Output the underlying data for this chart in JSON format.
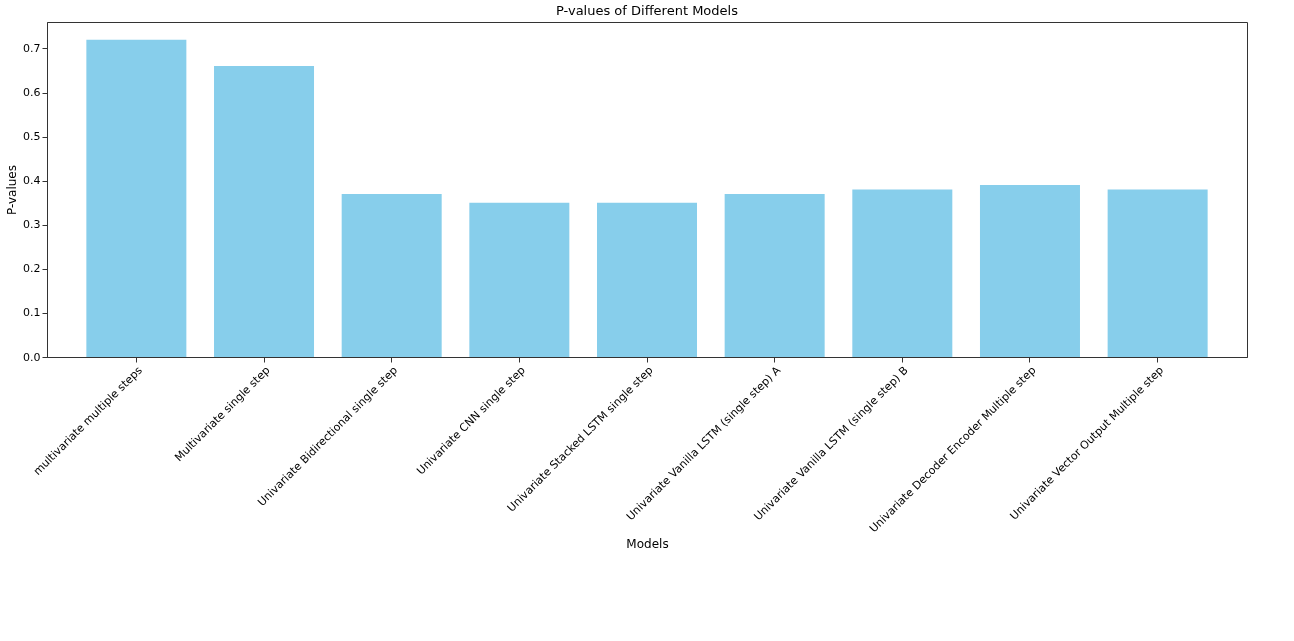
{
  "chart_data": {
    "type": "bar",
    "title": "P-values of Different Models",
    "xlabel": "Models",
    "ylabel": "P-values",
    "categories": [
      "multivariate multiple steps",
      "Multivariate single step",
      "Univariate Bidirectional single step",
      "Univariate CNN single step",
      "Univariate Stacked LSTM single step",
      "Univariate Vanilla LSTM (single step) A",
      "Univariate Vanilla LSTM (single step) B",
      "Univariate Decoder Encoder Multiple step",
      "Univariate Vector Output Multiple step"
    ],
    "values": [
      0.72,
      0.66,
      0.37,
      0.35,
      0.35,
      0.37,
      0.38,
      0.39,
      0.38
    ],
    "color": "#87ceeb",
    "ylim": [
      0,
      0.76
    ],
    "yticks": [
      {
        "value": 0,
        "label": "0.0"
      },
      0.1,
      0.2,
      0.3,
      0.4,
      0.5,
      0.6,
      0.7
    ],
    "grid": false
  }
}
